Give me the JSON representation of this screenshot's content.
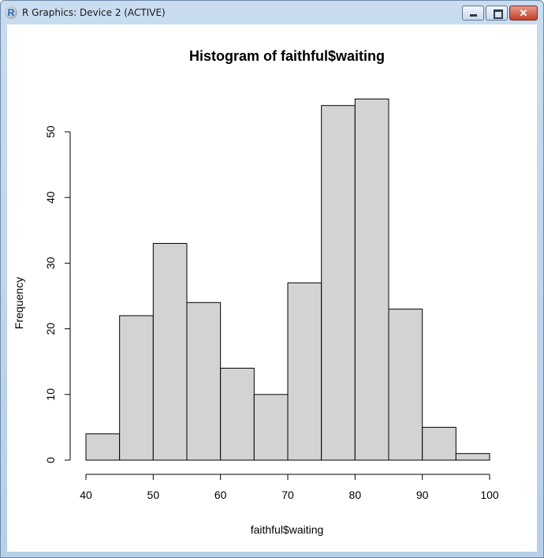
{
  "window": {
    "title": "R Graphics: Device 2 (ACTIVE)",
    "icon_letter": "R",
    "buttons": {
      "minimize": "minimize-icon",
      "maximize": "maximize-icon",
      "close": "close-icon"
    }
  },
  "chart_data": {
    "type": "bar",
    "title": "Histogram of faithful$waiting",
    "xlabel": "faithful$waiting",
    "ylabel": "Frequency",
    "bins": [
      [
        40,
        45
      ],
      [
        45,
        50
      ],
      [
        50,
        55
      ],
      [
        55,
        60
      ],
      [
        60,
        65
      ],
      [
        65,
        70
      ],
      [
        70,
        75
      ],
      [
        75,
        80
      ],
      [
        80,
        85
      ],
      [
        85,
        90
      ],
      [
        90,
        95
      ],
      [
        95,
        100
      ]
    ],
    "values": [
      4,
      22,
      33,
      24,
      14,
      10,
      27,
      54,
      55,
      23,
      5,
      1
    ],
    "xlim": [
      40,
      100
    ],
    "ylim": [
      0,
      55
    ],
    "xticks": [
      "40",
      "50",
      "60",
      "70",
      "80",
      "90",
      "100"
    ],
    "yticks": [
      "0",
      "10",
      "20",
      "30",
      "40",
      "50"
    ],
    "bar_fill": "#d3d3d3",
    "grid": false,
    "legend": "none"
  }
}
